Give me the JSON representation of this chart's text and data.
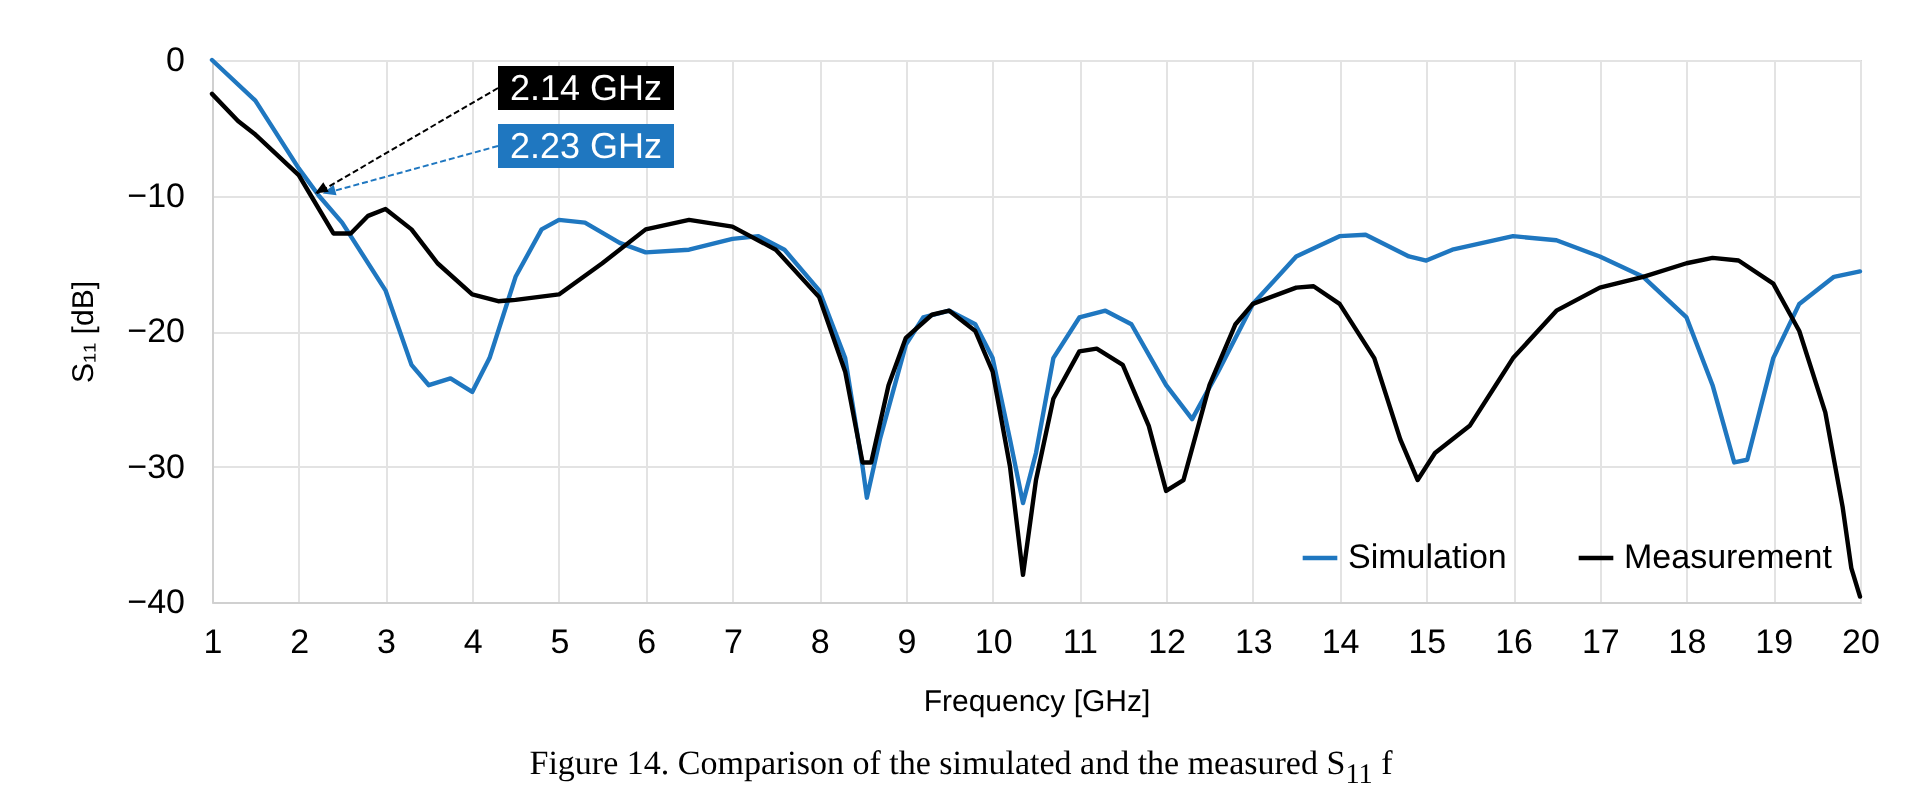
{
  "chart_data": {
    "type": "line",
    "xlabel": "Frequency [GHz]",
    "ylabel": "S₁₁ [dB]",
    "xlim": [
      1,
      20
    ],
    "xticks": [
      1,
      2,
      3,
      4,
      5,
      6,
      7,
      8,
      9,
      10,
      11,
      12,
      13,
      14,
      15,
      16,
      17,
      18,
      19,
      20
    ],
    "ylim": [
      -40,
      0
    ],
    "yticks": [
      -40,
      -30,
      -20,
      -10,
      0
    ],
    "grid": true,
    "legend": "bottom right",
    "line_style": "solid",
    "series": [
      {
        "name": "Simulation",
        "color": "#1f77c0",
        "x": [
          1,
          1.5,
          2,
          2.23,
          2.5,
          3,
          3.3,
          3.5,
          3.75,
          4,
          4.2,
          4.5,
          4.8,
          5,
          5.3,
          5.7,
          6,
          6.5,
          7,
          7.3,
          7.6,
          8,
          8.3,
          8.5,
          8.55,
          8.7,
          9,
          9.2,
          9.5,
          9.8,
          10,
          10.2,
          10.35,
          10.5,
          10.7,
          11,
          11.3,
          11.6,
          12,
          12.3,
          12.6,
          13,
          13.5,
          14,
          14.3,
          14.8,
          15,
          15.3,
          16,
          16.5,
          17,
          17.5,
          18,
          18.3,
          18.55,
          18.7,
          19,
          19.3,
          19.7,
          20
        ],
        "values": [
          0,
          -3,
          -8,
          -10,
          -12,
          -17,
          -22.5,
          -24,
          -23.5,
          -24.5,
          -22,
          -16,
          -12.5,
          -11.8,
          -12,
          -13.5,
          -14.2,
          -14,
          -13.2,
          -13,
          -14,
          -17,
          -22,
          -30,
          -32.3,
          -28,
          -21,
          -19,
          -18.5,
          -19.5,
          -22,
          -28,
          -32.7,
          -29,
          -22,
          -19,
          -18.5,
          -19.5,
          -24,
          -26.5,
          -23,
          -18,
          -14.5,
          -13,
          -12.9,
          -14.5,
          -14.8,
          -14,
          -13,
          -13.3,
          -14.5,
          -16,
          -19,
          -24,
          -29.7,
          -29.5,
          -22,
          -18,
          -16,
          -15.6
        ]
      },
      {
        "name": "Measurement",
        "color": "#000000",
        "x": [
          1,
          1.3,
          1.5,
          2,
          2.14,
          2.4,
          2.6,
          2.8,
          3,
          3.3,
          3.6,
          4,
          4.3,
          4.5,
          5,
          5.5,
          6,
          6.5,
          7,
          7.5,
          8,
          8.3,
          8.5,
          8.6,
          8.8,
          9,
          9.3,
          9.5,
          9.8,
          10,
          10.2,
          10.35,
          10.5,
          10.7,
          11,
          11.2,
          11.5,
          11.8,
          12,
          12.2,
          12.5,
          12.8,
          13,
          13.5,
          13.7,
          14,
          14.4,
          14.7,
          14.9,
          15.1,
          15.5,
          15.8,
          16,
          16.5,
          17,
          17.5,
          18,
          18.3,
          18.6,
          19,
          19.3,
          19.6,
          19.8,
          19.9,
          20
        ],
        "values": [
          -2.5,
          -4.5,
          -5.5,
          -8.5,
          -10,
          -12.8,
          -12.8,
          -11.5,
          -11,
          -12.5,
          -15,
          -17.3,
          -17.8,
          -17.7,
          -17.3,
          -15,
          -12.5,
          -11.8,
          -12.3,
          -14,
          -17.5,
          -23,
          -29.7,
          -29.7,
          -24,
          -20.5,
          -18.8,
          -18.5,
          -20,
          -23,
          -30,
          -38,
          -31,
          -25,
          -21.5,
          -21.3,
          -22.5,
          -27,
          -31.8,
          -31,
          -24,
          -19.5,
          -18,
          -16.8,
          -16.7,
          -18,
          -22,
          -28,
          -31,
          -29,
          -27,
          -24,
          -22,
          -18.5,
          -16.8,
          -16,
          -15,
          -14.6,
          -14.8,
          -16.5,
          -20,
          -26,
          -33,
          -37.5,
          -39.6
        ]
      }
    ],
    "annotations": [
      {
        "text": "2.23 GHz",
        "x": 2.23,
        "y": -10
      },
      {
        "text": "2.14 GHz",
        "x": 2.14,
        "y": -10
      },
      "Figure 14. Comparison of the simulated and the measured S$_{11}$ f"
    ]
  }
}
